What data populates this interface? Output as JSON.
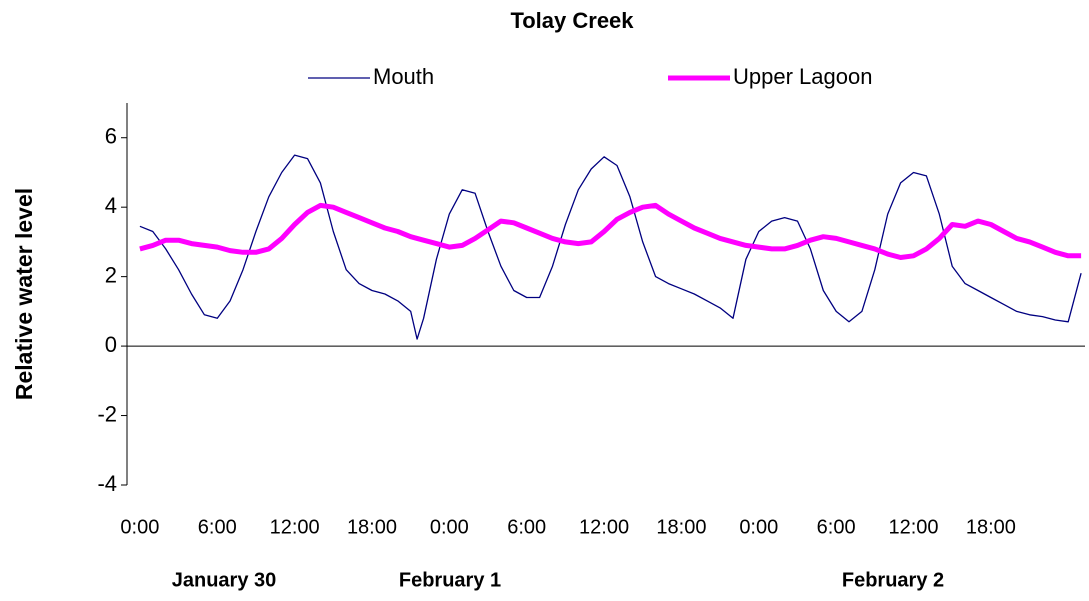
{
  "chart_data": {
    "type": "line",
    "title": "Tolay Creek",
    "y_label": "Relative water level",
    "x": [
      0,
      1,
      2,
      3,
      4,
      5,
      6,
      7,
      8,
      9,
      10,
      11,
      12,
      13,
      14,
      15,
      16,
      17,
      18,
      19,
      20,
      21,
      21.5,
      22,
      23,
      24,
      25,
      26,
      27,
      28,
      29,
      30,
      31,
      32,
      33,
      34,
      35,
      36,
      37,
      38,
      39,
      40,
      41,
      42,
      43,
      44,
      45,
      46,
      47,
      48,
      49,
      50,
      51,
      52,
      53,
      54,
      55,
      56,
      57,
      58,
      59,
      60,
      61,
      62,
      63,
      64,
      65,
      66,
      67,
      68,
      69,
      70,
      71,
      72,
      73
    ],
    "series": [
      {
        "name": "Mouth",
        "color": "#000080",
        "width": 1.3,
        "values": [
          3.45,
          3.3,
          2.8,
          2.2,
          1.5,
          0.9,
          0.8,
          1.3,
          2.2,
          3.3,
          4.3,
          5.0,
          5.5,
          5.4,
          4.7,
          3.3,
          2.2,
          1.8,
          1.6,
          1.5,
          1.3,
          1.0,
          0.2,
          0.8,
          2.5,
          3.8,
          4.5,
          4.4,
          3.3,
          2.3,
          1.6,
          1.4,
          1.4,
          2.3,
          3.5,
          4.5,
          5.1,
          5.45,
          5.2,
          4.3,
          3.0,
          2.0,
          1.8,
          1.65,
          1.5,
          1.3,
          1.1,
          0.8,
          2.5,
          3.3,
          3.6,
          3.7,
          3.6,
          2.8,
          1.6,
          1.0,
          0.7,
          1.0,
          2.2,
          3.8,
          4.7,
          5.0,
          4.9,
          3.8,
          2.3,
          1.8,
          1.6,
          1.4,
          1.2,
          1.0,
          0.9,
          0.85,
          0.75,
          0.7,
          2.1
        ]
      },
      {
        "name": "Upper Lagoon",
        "color": "#ff00ff",
        "width": 5,
        "values": [
          2.8,
          2.9,
          3.05,
          3.05,
          2.95,
          2.9,
          2.85,
          2.75,
          2.7,
          2.7,
          2.8,
          3.1,
          3.5,
          3.85,
          4.05,
          4.0,
          3.85,
          3.7,
          3.55,
          3.4,
          3.3,
          3.15,
          3.1,
          3.05,
          2.95,
          2.85,
          2.9,
          3.1,
          3.35,
          3.6,
          3.55,
          3.4,
          3.25,
          3.1,
          3.0,
          2.95,
          3.0,
          3.3,
          3.65,
          3.85,
          4.0,
          4.05,
          3.8,
          3.6,
          3.4,
          3.25,
          3.1,
          3.0,
          2.9,
          2.85,
          2.8,
          2.8,
          2.9,
          3.05,
          3.15,
          3.1,
          3.0,
          2.9,
          2.8,
          2.65,
          2.55,
          2.6,
          2.8,
          3.1,
          3.5,
          3.45,
          3.6,
          3.5,
          3.3,
          3.1,
          3.0,
          2.85,
          2.7,
          2.6,
          2.6
        ]
      }
    ],
    "xlim": [
      -1,
      73.3
    ],
    "xticks": [
      {
        "value": 0,
        "label": "0:00"
      },
      {
        "value": 6,
        "label": "6:00"
      },
      {
        "value": 12,
        "label": "12:00"
      },
      {
        "value": 18,
        "label": "18:00"
      },
      {
        "value": 24,
        "label": "0:00"
      },
      {
        "value": 30,
        "label": "6:00"
      },
      {
        "value": 36,
        "label": "12:00"
      },
      {
        "value": 42,
        "label": "18:00"
      },
      {
        "value": 48,
        "label": "0:00"
      },
      {
        "value": 54,
        "label": "6:00"
      },
      {
        "value": 60,
        "label": "12:00"
      },
      {
        "value": 66,
        "label": "18:00"
      }
    ],
    "ylim": [
      -4,
      7
    ],
    "yticks": [
      -4,
      -2,
      0,
      2,
      4,
      6
    ],
    "date_labels": [
      "January 30",
      "February 1",
      "February 2"
    ],
    "grid": false
  }
}
